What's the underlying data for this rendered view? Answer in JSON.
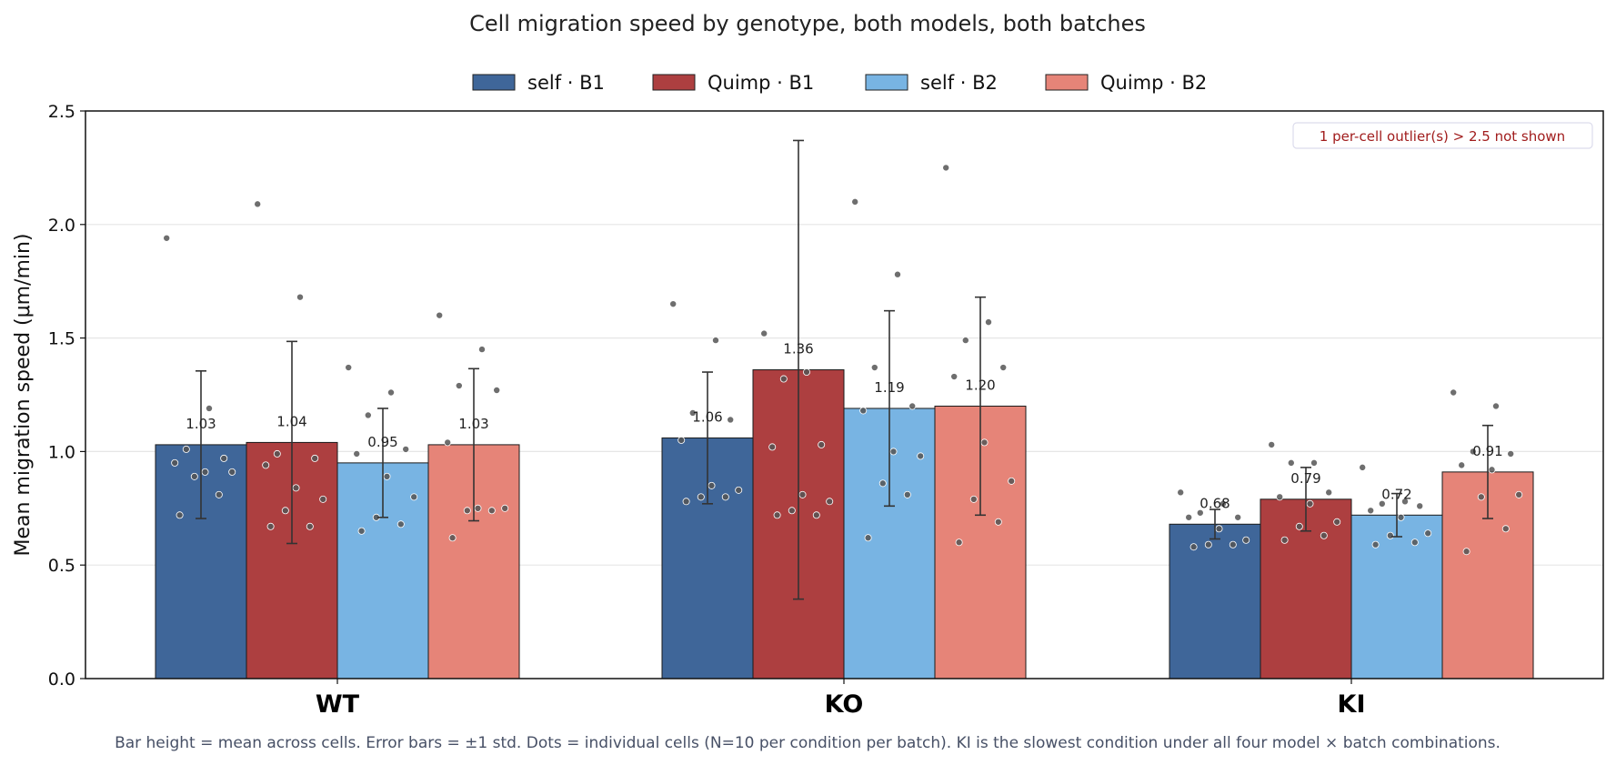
{
  "chart_data": {
    "type": "bar",
    "title": "Cell migration speed by genotype, both models, both batches",
    "ylabel": "Mean migration speed (μm/min)",
    "xlabel": "",
    "ylim": [
      0,
      2.5
    ],
    "yticks": [
      "0.0",
      "0.5",
      "1.0",
      "1.5",
      "2.0",
      "2.5"
    ],
    "categories": [
      "WT",
      "KO",
      "KI"
    ],
    "grid": "horizontal",
    "legend_position": "top-center",
    "series": [
      {
        "name": "self · B1",
        "color": "#3f6699",
        "values": [
          1.03,
          1.06,
          0.68
        ],
        "labels": [
          "1.03",
          "1.06",
          "0.68"
        ],
        "std": [
          0.325,
          0.29,
          0.065
        ],
        "cells": [
          [
            1.94,
            1.19,
            1.01,
            0.97,
            0.95,
            0.91,
            0.91,
            0.89,
            0.81,
            0.72
          ],
          [
            1.65,
            1.49,
            1.17,
            1.14,
            1.05,
            0.85,
            0.83,
            0.8,
            0.8,
            0.78
          ],
          [
            0.82,
            0.77,
            0.73,
            0.71,
            0.71,
            0.66,
            0.61,
            0.59,
            0.59,
            0.58
          ]
        ]
      },
      {
        "name": "Quimp · B1",
        "color": "#ad3f40",
        "values": [
          1.04,
          1.36,
          0.79
        ],
        "labels": [
          "1.04",
          "1.36",
          "0.79"
        ],
        "std": [
          0.445,
          1.01,
          0.14
        ],
        "cells": [
          [
            2.09,
            1.68,
            0.99,
            0.97,
            0.94,
            0.84,
            0.79,
            0.74,
            0.67,
            0.67
          ],
          [
            1.52,
            1.35,
            1.32,
            1.03,
            1.02,
            0.81,
            0.78,
            0.74,
            0.72,
            0.72
          ],
          [
            1.03,
            0.95,
            0.95,
            0.82,
            0.8,
            0.77,
            0.69,
            0.67,
            0.63,
            0.61
          ]
        ]
      },
      {
        "name": "self · B2",
        "color": "#78b4e3",
        "values": [
          0.95,
          1.19,
          0.72
        ],
        "labels": [
          "0.95",
          "1.19",
          "0.72"
        ],
        "std": [
          0.24,
          0.43,
          0.095
        ],
        "cells": [
          [
            1.37,
            1.26,
            1.16,
            1.01,
            0.99,
            0.89,
            0.8,
            0.71,
            0.68,
            0.65
          ],
          [
            2.1,
            1.78,
            1.37,
            1.2,
            1.18,
            1.0,
            0.98,
            0.86,
            0.81,
            0.62
          ],
          [
            0.93,
            0.78,
            0.77,
            0.76,
            0.74,
            0.71,
            0.64,
            0.63,
            0.6,
            0.59
          ]
        ]
      },
      {
        "name": "Quimp · B2",
        "color": "#e68478",
        "values": [
          1.03,
          1.2,
          0.91
        ],
        "labels": [
          "1.03",
          "1.20",
          "0.91"
        ],
        "std": [
          0.335,
          0.48,
          0.205
        ],
        "cells": [
          [
            1.6,
            1.45,
            1.29,
            1.27,
            1.04,
            0.75,
            0.75,
            0.74,
            0.74,
            0.62
          ],
          [
            2.25,
            1.57,
            1.49,
            1.37,
            1.33,
            1.04,
            0.87,
            0.79,
            0.69,
            0.6
          ],
          [
            1.26,
            1.2,
            1.0,
            0.99,
            0.94,
            0.92,
            0.81,
            0.8,
            0.66,
            0.56
          ]
        ]
      }
    ],
    "annotation": "1 per-cell outlier(s) > 2.5 not shown",
    "caption": "Bar height = mean across cells. Error bars = ±1 std. Dots = individual cells (N=10 per condition per batch). KI is the slowest condition under all four model × batch combinations."
  }
}
